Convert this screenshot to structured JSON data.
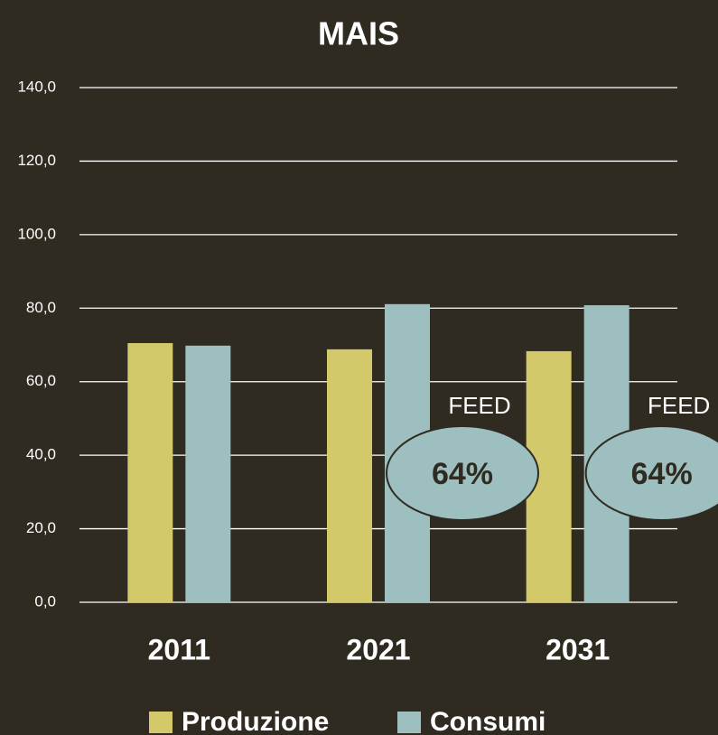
{
  "chart_data": {
    "type": "bar",
    "title": "MAIS",
    "categories": [
      "2011",
      "2021",
      "2031"
    ],
    "series": [
      {
        "name": "Produzione",
        "color": "#d4c96a",
        "values": [
          70.5,
          68.8,
          68.3
        ]
      },
      {
        "name": "Consumi",
        "color": "#9dbfbf",
        "values": [
          69.8,
          81.1,
          80.8
        ]
      }
    ],
    "ylim": [
      0,
      140
    ],
    "yticks": [
      {
        "value": 0,
        "label": "0,0"
      },
      {
        "value": 20,
        "label": "20,0"
      },
      {
        "value": 40,
        "label": "40,0"
      },
      {
        "value": 60,
        "label": "60,0"
      },
      {
        "value": 80,
        "label": "80,0"
      },
      {
        "value": 100,
        "label": "100,0"
      },
      {
        "value": 120,
        "label": "120,0"
      },
      {
        "value": 140,
        "label": "140,0"
      }
    ],
    "grid": true,
    "annotations": [
      {
        "category": "2021",
        "text": "FEED",
        "badge": "64%"
      },
      {
        "category": "2031",
        "text": "FEED",
        "badge": "64%"
      }
    ]
  }
}
